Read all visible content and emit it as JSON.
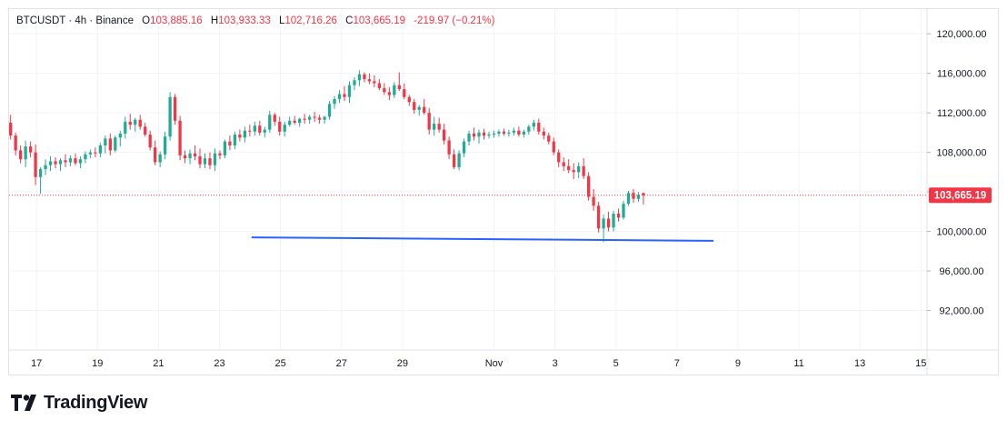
{
  "legend": {
    "symbol": "BTCUSDT",
    "sep1": "·",
    "interval": "4h",
    "sep2": "·",
    "exchange": "Binance",
    "open_label": "O",
    "open": "103,885.16",
    "high_label": "H",
    "high": "103,933.33",
    "low_label": "L",
    "low": "102,716.26",
    "close_label": "C",
    "close": "103,665.19",
    "change": "-219.97 (−0.21%)"
  },
  "branding": {
    "name": "TradingView",
    "icon": "tradingview-logo-icon"
  },
  "colors": {
    "up": "#22ab94",
    "down": "#f23645",
    "trendline": "#2962ff",
    "grid": "#f0f3fa",
    "axis_text": "#131722"
  },
  "chart_data": {
    "type": "candlestick",
    "title": "",
    "symbol": "BTCUSDT",
    "interval": "4h",
    "exchange": "Binance",
    "ylim": [
      88000,
      122500
    ],
    "y_ticks": [
      120000,
      116000,
      112000,
      108000,
      104000,
      100000,
      96000,
      92000
    ],
    "y_tick_labels": [
      "120,000.00",
      "116,000.00",
      "112,000.00",
      "108,000.00",
      "",
      "100,000.00",
      "96,000.00",
      "92,000.00"
    ],
    "x_ticks": [
      "17",
      "19",
      "21",
      "23",
      "25",
      "27",
      "29",
      "Nov",
      "3",
      "5",
      "7",
      "9",
      "11",
      "13",
      "15"
    ],
    "x_ticks_day": [
      17,
      19,
      21,
      23,
      25,
      27,
      29,
      32,
      34,
      36,
      38,
      40,
      42,
      44,
      46
    ],
    "x_range_day": [
      16.1,
      46.2
    ],
    "last_price": 103665.19,
    "last_price_label": "103,665.19",
    "grid": true,
    "trendline": {
      "start": {
        "day": 24.05,
        "price": 99400
      },
      "end": {
        "day": 39.2,
        "price": 99050
      }
    },
    "candles": [
      [
        111000,
        111800,
        109300,
        109700
      ],
      [
        109700,
        110000,
        107700,
        108200
      ],
      [
        108200,
        108700,
        106900,
        107300
      ],
      [
        107300,
        109200,
        106500,
        108600
      ],
      [
        108600,
        109100,
        107500,
        108000
      ],
      [
        108000,
        108800,
        104700,
        105500
      ],
      [
        105500,
        106500,
        103800,
        106300
      ],
      [
        106300,
        107300,
        105700,
        106700
      ],
      [
        106700,
        107600,
        106100,
        107100
      ],
      [
        107100,
        107500,
        106400,
        106800
      ],
      [
        106800,
        107400,
        106100,
        107200
      ],
      [
        107200,
        107800,
        106500,
        107000
      ],
      [
        107000,
        107700,
        106600,
        107400
      ],
      [
        107400,
        107900,
        106700,
        106900
      ],
      [
        106900,
        107600,
        106400,
        107300
      ],
      [
        107300,
        108100,
        106900,
        107800
      ],
      [
        107800,
        108300,
        107400,
        108000
      ],
      [
        108000,
        108500,
        107500,
        107900
      ],
      [
        107900,
        109000,
        107500,
        108700
      ],
      [
        108700,
        109700,
        107900,
        109400
      ],
      [
        109400,
        109900,
        107700,
        108200
      ],
      [
        108200,
        109700,
        108000,
        109500
      ],
      [
        109500,
        110200,
        108600,
        109900
      ],
      [
        109900,
        111600,
        109400,
        111100
      ],
      [
        111100,
        111900,
        110300,
        110800
      ],
      [
        110800,
        111500,
        110100,
        111300
      ],
      [
        111300,
        111800,
        110300,
        110600
      ],
      [
        110600,
        111000,
        109600,
        109800
      ],
      [
        109800,
        110200,
        108200,
        108500
      ],
      [
        108500,
        109200,
        106700,
        107000
      ],
      [
        107000,
        108100,
        106500,
        107800
      ],
      [
        107800,
        110100,
        107300,
        109600
      ],
      [
        109600,
        114100,
        109200,
        113600
      ],
      [
        113600,
        113900,
        110800,
        111200
      ],
      [
        111200,
        111700,
        107200,
        107700
      ],
      [
        107700,
        108200,
        106900,
        107400
      ],
      [
        107400,
        108300,
        106800,
        107900
      ],
      [
        107900,
        108700,
        107200,
        107600
      ],
      [
        107600,
        108400,
        106400,
        106800
      ],
      [
        106800,
        107900,
        106400,
        107400
      ],
      [
        107400,
        108000,
        106300,
        106700
      ],
      [
        106700,
        108400,
        106100,
        107900
      ],
      [
        107900,
        108200,
        107300,
        107700
      ],
      [
        107700,
        109300,
        107400,
        109100
      ],
      [
        109100,
        109700,
        108200,
        108700
      ],
      [
        108700,
        110100,
        108300,
        109800
      ],
      [
        109800,
        110300,
        109100,
        109500
      ],
      [
        109500,
        110600,
        109000,
        110200
      ],
      [
        110200,
        110800,
        109600,
        110100
      ],
      [
        110100,
        111100,
        109700,
        110700
      ],
      [
        110700,
        111200,
        109700,
        110000
      ],
      [
        110000,
        110600,
        109500,
        110300
      ],
      [
        110300,
        112200,
        110000,
        111800
      ],
      [
        111800,
        112000,
        110700,
        111100
      ],
      [
        111100,
        111600,
        109700,
        110100
      ],
      [
        110100,
        111100,
        109600,
        110800
      ],
      [
        110800,
        111600,
        110600,
        111200
      ],
      [
        111200,
        111700,
        110800,
        111000
      ],
      [
        111000,
        111500,
        110600,
        111400
      ],
      [
        111400,
        111900,
        110900,
        111300
      ],
      [
        111300,
        111800,
        110900,
        111600
      ],
      [
        111600,
        112100,
        111100,
        111500
      ],
      [
        111500,
        111800,
        110900,
        111300
      ],
      [
        111300,
        111700,
        110900,
        111600
      ],
      [
        111600,
        113200,
        111300,
        112900
      ],
      [
        112900,
        113700,
        112400,
        113400
      ],
      [
        113400,
        114300,
        113000,
        113900
      ],
      [
        113900,
        114700,
        113200,
        113600
      ],
      [
        113600,
        115200,
        113000,
        114800
      ],
      [
        114800,
        115600,
        114300,
        115300
      ],
      [
        115300,
        116300,
        114700,
        115900
      ],
      [
        115900,
        116100,
        115100,
        115400
      ],
      [
        115400,
        116000,
        114900,
        115200
      ],
      [
        115200,
        115800,
        114600,
        115000
      ],
      [
        115000,
        115400,
        114300,
        114500
      ],
      [
        114500,
        115000,
        113800,
        114100
      ],
      [
        114100,
        114600,
        113300,
        113800
      ],
      [
        113800,
        115100,
        113500,
        114800
      ],
      [
        114800,
        116100,
        114200,
        114400
      ],
      [
        114400,
        115000,
        113400,
        113600
      ],
      [
        113600,
        113800,
        112700,
        113100
      ],
      [
        113100,
        113400,
        111900,
        112300
      ],
      [
        112300,
        112800,
        111700,
        112600
      ],
      [
        112600,
        113400,
        111800,
        112000
      ],
      [
        112000,
        112500,
        109800,
        110300
      ],
      [
        110300,
        111600,
        109700,
        110900
      ],
      [
        110900,
        111500,
        110000,
        110300
      ],
      [
        110300,
        110900,
        108800,
        109200
      ],
      [
        109200,
        109600,
        107300,
        107800
      ],
      [
        107800,
        108300,
        106300,
        106500
      ],
      [
        106500,
        108200,
        106200,
        107900
      ],
      [
        107900,
        109400,
        107500,
        109100
      ],
      [
        109100,
        110200,
        108700,
        109900
      ],
      [
        109900,
        110500,
        109200,
        109600
      ],
      [
        109600,
        110300,
        108900,
        110000
      ],
      [
        110000,
        110400,
        109300,
        109700
      ],
      [
        109700,
        110100,
        109400,
        109800
      ],
      [
        109800,
        110200,
        109500,
        109900
      ],
      [
        109900,
        110300,
        109600,
        110100
      ],
      [
        110100,
        110400,
        109700,
        109900
      ],
      [
        109900,
        110300,
        109600,
        110000
      ],
      [
        110000,
        110500,
        109700,
        110200
      ],
      [
        110200,
        110600,
        109600,
        109800
      ],
      [
        109800,
        110300,
        109500,
        110100
      ],
      [
        110100,
        110800,
        109800,
        110600
      ],
      [
        110600,
        111300,
        110200,
        111000
      ],
      [
        111000,
        111400,
        109800,
        110100
      ],
      [
        110100,
        110500,
        109300,
        109700
      ],
      [
        109700,
        110000,
        108800,
        109100
      ],
      [
        109100,
        109500,
        107700,
        108000
      ],
      [
        108000,
        108300,
        106500,
        107000
      ],
      [
        107000,
        107500,
        106100,
        106600
      ],
      [
        106600,
        107300,
        105900,
        106200
      ],
      [
        106200,
        106900,
        105300,
        106000
      ],
      [
        106000,
        107000,
        105400,
        106600
      ],
      [
        106600,
        107400,
        105300,
        105600
      ],
      [
        105600,
        106000,
        103100,
        103500
      ],
      [
        103500,
        104300,
        102100,
        102600
      ],
      [
        102600,
        103000,
        99900,
        100300
      ],
      [
        100300,
        101700,
        98900,
        101300
      ],
      [
        101300,
        102000,
        100000,
        100400
      ],
      [
        100400,
        102100,
        100000,
        101800
      ],
      [
        101800,
        102300,
        101000,
        101400
      ],
      [
        101400,
        103100,
        101200,
        102800
      ],
      [
        102800,
        104100,
        102600,
        103900
      ],
      [
        103900,
        104300,
        102900,
        103300
      ],
      [
        103300,
        104000,
        103000,
        103700
      ],
      [
        103885.16,
        103933.33,
        102716.26,
        103665.19
      ]
    ]
  }
}
